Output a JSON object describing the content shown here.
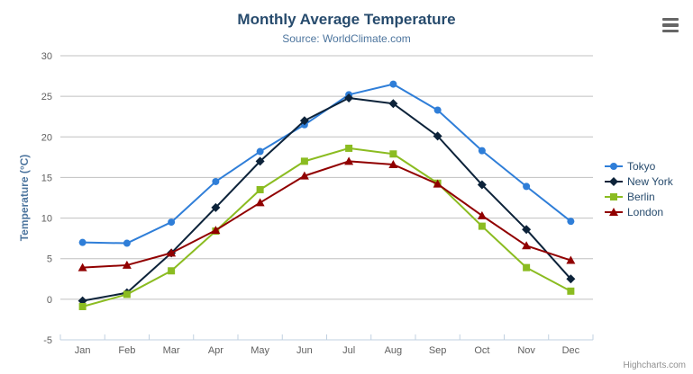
{
  "header": {
    "title": "Monthly Average Temperature",
    "subtitle": "Source: WorldClimate.com"
  },
  "export_menu": {
    "icon": "hamburger-icon"
  },
  "credits_label": "Highcharts.com",
  "colors": {
    "title": "#274b6d",
    "subtitle": "#4d759e",
    "axis_title": "#4d759e",
    "tick_label": "#606060",
    "grid_line": "#c0c0c0",
    "axis_line": "#c0d0e0",
    "legend_text": "#274b6d",
    "credits": "#909090",
    "menu_icon": "#666666",
    "background": "#ffffff"
  },
  "chart_data": {
    "type": "line",
    "title": "Monthly Average Temperature",
    "subtitle": "Source: WorldClimate.com",
    "categories": [
      "Jan",
      "Feb",
      "Mar",
      "Apr",
      "May",
      "Jun",
      "Jul",
      "Aug",
      "Sep",
      "Oct",
      "Nov",
      "Dec"
    ],
    "series": [
      {
        "name": "Tokyo",
        "color": "#2f7ed8",
        "marker": "circle",
        "values": [
          7.0,
          6.9,
          9.5,
          14.5,
          18.2,
          21.5,
          25.2,
          26.5,
          23.3,
          18.3,
          13.9,
          9.6
        ]
      },
      {
        "name": "New York",
        "color": "#0d233a",
        "marker": "diamond",
        "values": [
          -0.2,
          0.8,
          5.7,
          11.3,
          17.0,
          22.0,
          24.8,
          24.1,
          20.1,
          14.1,
          8.6,
          2.5
        ]
      },
      {
        "name": "Berlin",
        "color": "#8bbc21",
        "marker": "square",
        "values": [
          -0.9,
          0.6,
          3.5,
          8.4,
          13.5,
          17.0,
          18.6,
          17.9,
          14.3,
          9.0,
          3.9,
          1.0
        ]
      },
      {
        "name": "London",
        "color": "#910000",
        "marker": "triangle",
        "values": [
          3.9,
          4.2,
          5.7,
          8.5,
          11.9,
          15.2,
          17.0,
          16.6,
          14.2,
          10.3,
          6.6,
          4.8
        ]
      }
    ],
    "xlabel": "",
    "ylabel": "Temperature (°C)",
    "ylim": [
      -5,
      30
    ],
    "yticks": [
      -5,
      0,
      5,
      10,
      15,
      20,
      25,
      30
    ],
    "grid": true,
    "legend_position": "right"
  }
}
